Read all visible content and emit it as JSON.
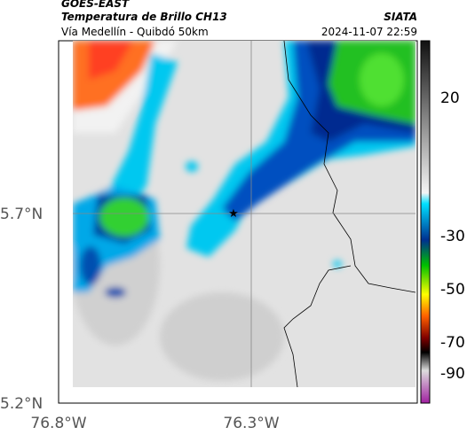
{
  "header": {
    "product": "GOES-EAST",
    "title": "Temperatura de Brillo CH13",
    "route": "Vía Medellín - Quibdó 50km",
    "source": "SIATA",
    "datetime": "2024-11-07 22:59"
  },
  "axes": {
    "y_labels": [
      "5.7°N",
      "5.2°N"
    ],
    "x_labels": [
      "76.8°W",
      "76.3°W"
    ]
  },
  "colorbar": {
    "labels": [
      "20",
      "-30",
      "-50",
      "-70",
      "-90"
    ]
  }
}
